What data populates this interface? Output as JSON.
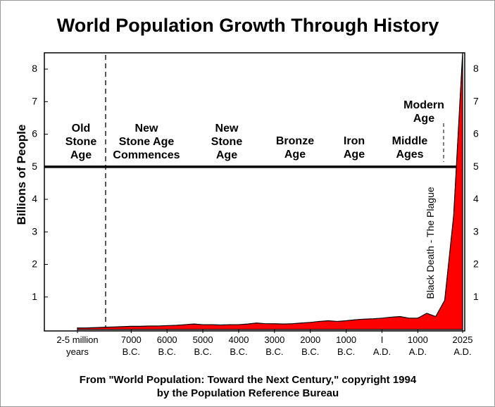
{
  "chart_data": {
    "type": "area",
    "title": "World Population Growth Through History",
    "subtitle": "From \"World Population: Toward the Next Century,\" copyright 1994\nby the Population Reference Bureau",
    "y_label": "Billions of People",
    "categories": [
      "2-5 million\nyears",
      null,
      null,
      null,
      null,
      null,
      "7000\nB.C.",
      null,
      null,
      null,
      "6000\nB.C.",
      null,
      null,
      null,
      "5000\nB.C.",
      null,
      null,
      null,
      "4000\nB.C.",
      null,
      null,
      null,
      "3000\nB.C.",
      null,
      null,
      null,
      "2000\nB.C.",
      null,
      null,
      null,
      "1000\nB.C.",
      null,
      null,
      null,
      "I\nA.D.",
      null,
      null,
      null,
      "1000\nA.D.",
      null,
      null,
      null,
      null,
      "2025\nA.D."
    ],
    "values": [
      0.05,
      0.05,
      0.06,
      0.07,
      0.08,
      0.09,
      0.1,
      0.1,
      0.11,
      0.11,
      0.12,
      0.13,
      0.15,
      0.17,
      0.15,
      0.15,
      0.14,
      0.15,
      0.15,
      0.17,
      0.2,
      0.18,
      0.18,
      0.17,
      0.18,
      0.2,
      0.22,
      0.25,
      0.27,
      0.25,
      0.27,
      0.3,
      0.32,
      0.33,
      0.35,
      0.38,
      0.4,
      0.35,
      0.35,
      0.5,
      0.4,
      0.9,
      3.5,
      8.5
    ],
    "color": "#ff0000",
    "ylim": [
      0,
      8.5
    ],
    "yticks": [
      1,
      2,
      3,
      4,
      5,
      6,
      7,
      8
    ],
    "era_line": 5,
    "eras": [
      "Old\nStone\nAge",
      "New\nStone Age\nCommences",
      "New\nStone\nAge",
      "Bronze\nAge",
      "Iron\nAge",
      "Middle\nAges",
      "Modern\nAge"
    ],
    "annotation": "Black Death - The Plague"
  }
}
